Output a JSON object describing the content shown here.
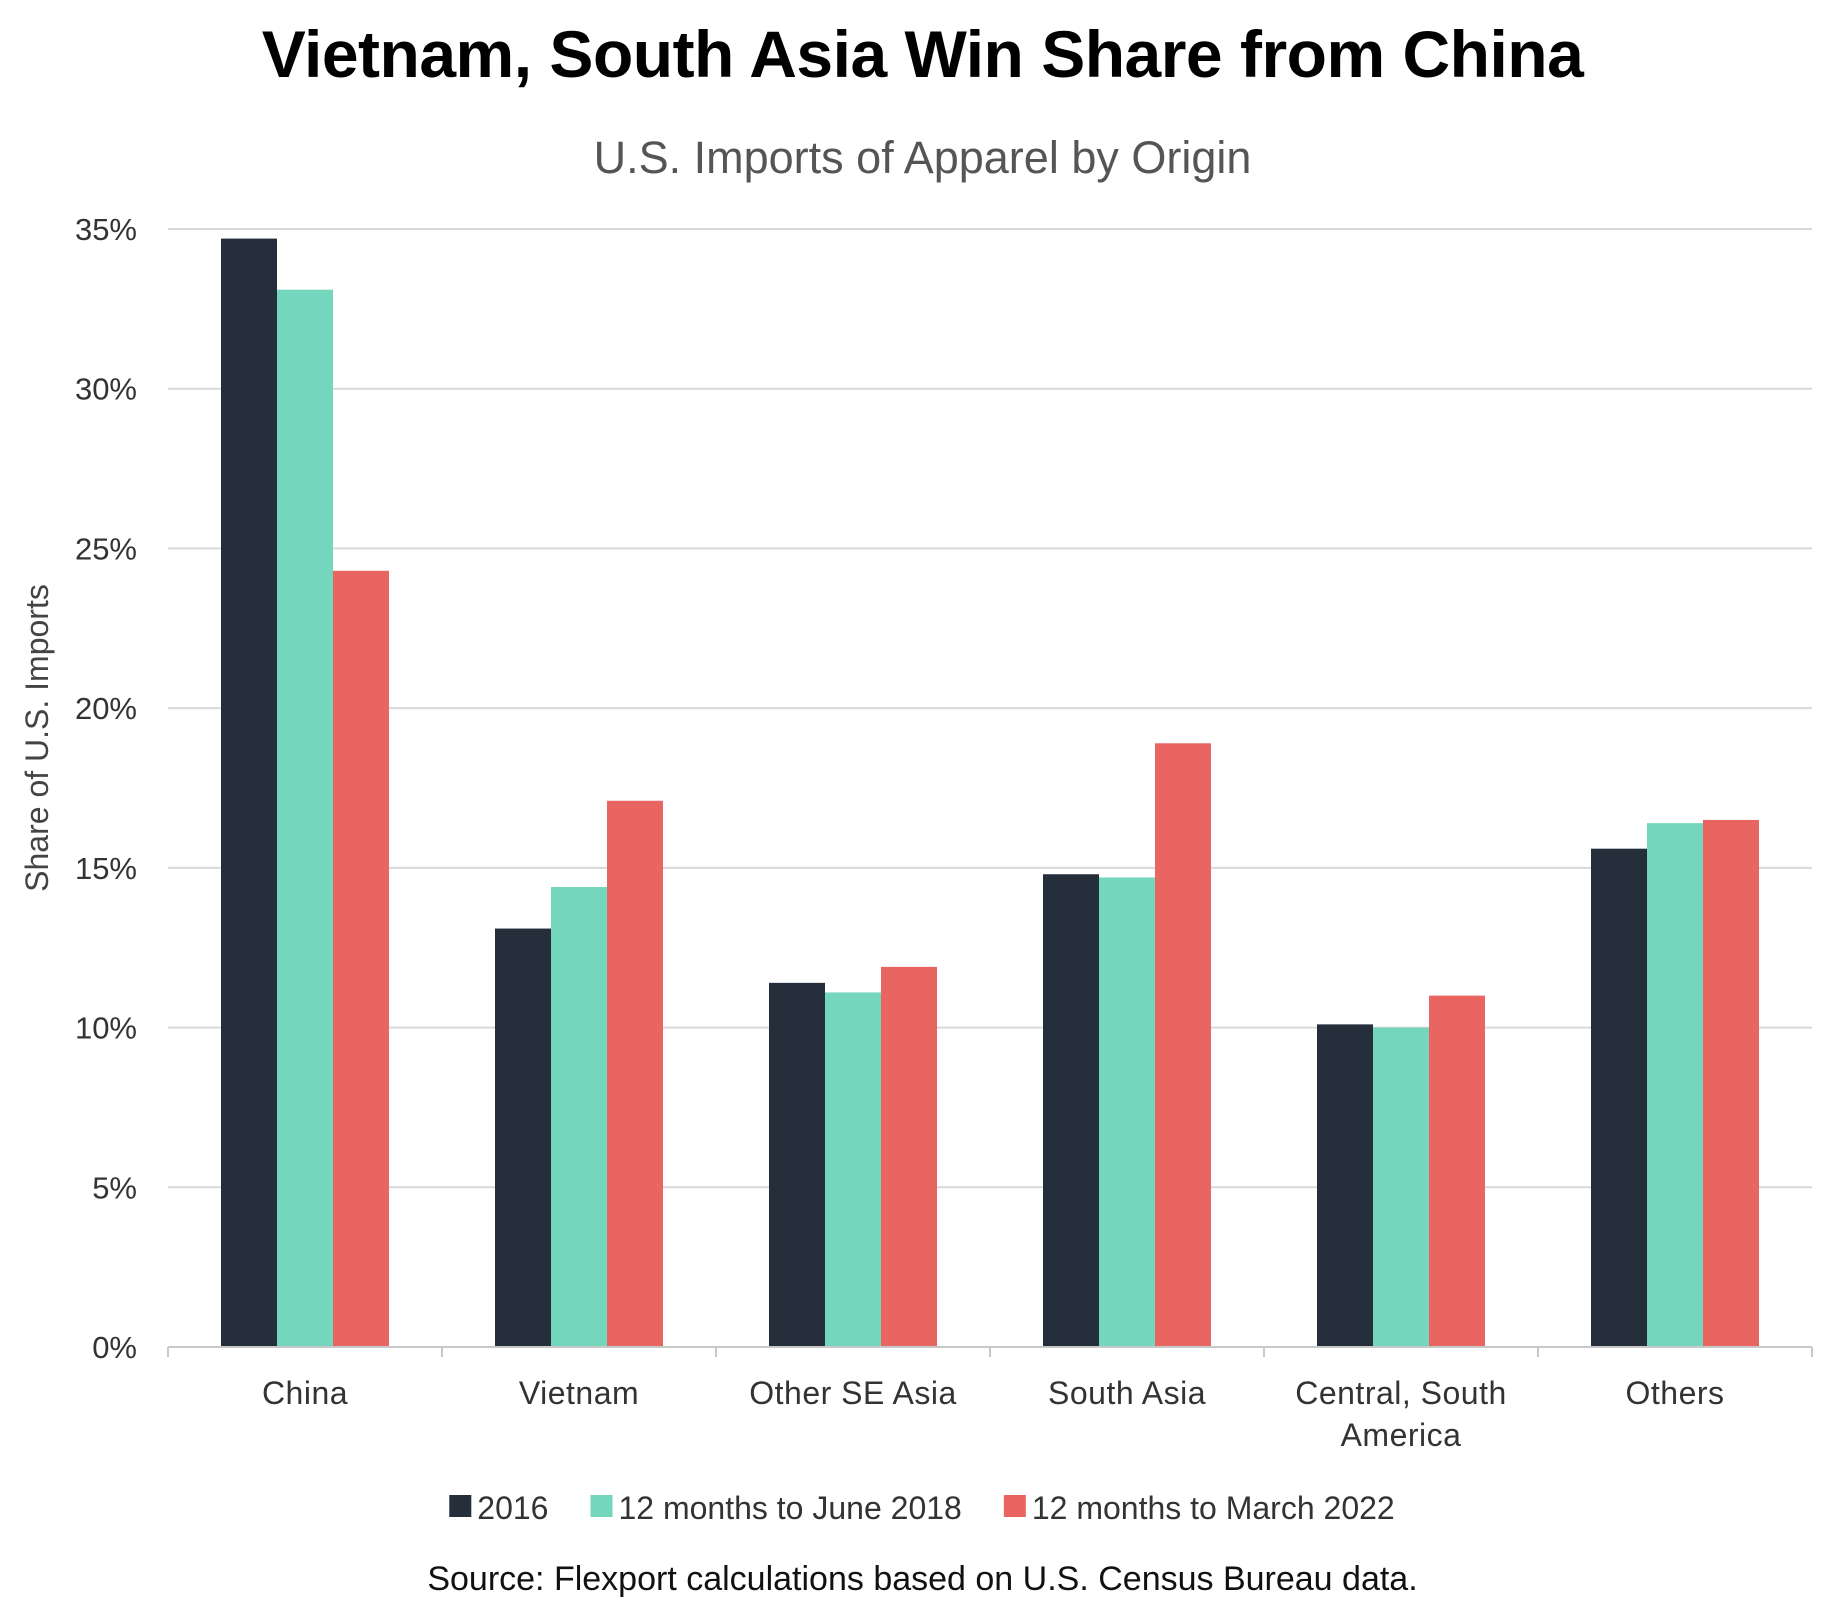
{
  "chart_data": {
    "type": "bar",
    "title": "Vietnam, South Asia Win Share from China",
    "subtitle": "U.S. Imports of Apparel by Origin",
    "ylabel": "Share of U.S. Imports",
    "xlabel": "",
    "ylim": [
      0,
      35
    ],
    "yticks": [
      0,
      5,
      10,
      15,
      20,
      25,
      30,
      35
    ],
    "ytick_labels": [
      "0%",
      "5%",
      "10%",
      "15%",
      "20%",
      "25%",
      "30%",
      "35%"
    ],
    "categories": [
      {
        "lines": [
          "China"
        ]
      },
      {
        "lines": [
          "Vietnam"
        ]
      },
      {
        "lines": [
          "Other SE Asia"
        ]
      },
      {
        "lines": [
          "South Asia"
        ]
      },
      {
        "lines": [
          "Central, South",
          "America"
        ]
      },
      {
        "lines": [
          "Others"
        ]
      }
    ],
    "series": [
      {
        "name": "2016",
        "color": "#252e3b",
        "values": [
          34.7,
          13.1,
          11.4,
          14.8,
          10.1,
          15.6
        ]
      },
      {
        "name": "12 months to June 2018",
        "color": "#74d6bd",
        "values": [
          33.1,
          14.4,
          11.1,
          14.7,
          10.0,
          16.4
        ]
      },
      {
        "name": "12 months to March 2022",
        "color": "#e86561",
        "values": [
          24.3,
          17.1,
          11.9,
          18.9,
          11.0,
          16.5
        ]
      }
    ],
    "grid": true,
    "legend_position": "bottom",
    "source": "Source: Flexport calculations based on U.S. Census Bureau data."
  }
}
